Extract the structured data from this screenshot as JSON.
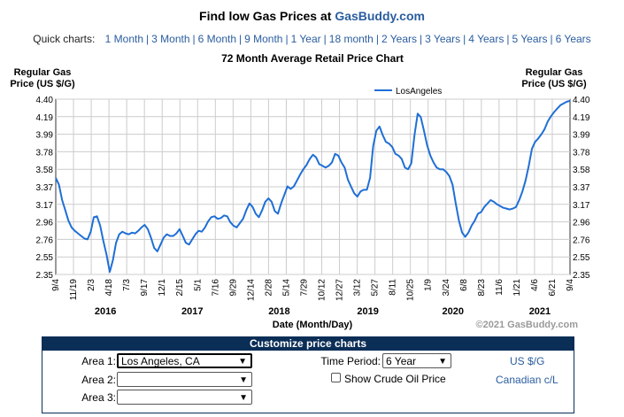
{
  "header": {
    "title_prefix": "Find low Gas Prices at ",
    "title_brand": "GasBuddy.com"
  },
  "quick_charts": {
    "label": "Quick charts:",
    "items": [
      "1 Month",
      "3 Month",
      "6 Month",
      "9 Month",
      "1 Year",
      "18 month",
      "2 Years",
      "3 Years",
      "4 Years",
      "5 Years",
      "6 Years"
    ]
  },
  "chart_data": {
    "type": "line",
    "title": "72 Month Average Retail Price Chart",
    "ylabel_left": [
      "Regular Gas",
      "Price (US $/G)"
    ],
    "ylabel_right": [
      "Regular Gas",
      "Price (US $/G)"
    ],
    "xlabel": "Date (Month/Day)",
    "copyright": "©2021 GasBuddy.com",
    "ylim": [
      2.35,
      4.4
    ],
    "yticks": [
      "4.40",
      "4.19",
      "3.99",
      "3.78",
      "3.58",
      "3.37",
      "3.17",
      "2.96",
      "2.76",
      "2.55",
      "2.35"
    ],
    "xticks": [
      "9/4",
      "11/19",
      "2/3",
      "4/18",
      "7/3",
      "9/17",
      "12/1",
      "2/15",
      "5/1",
      "7/16",
      "9/29",
      "12/14",
      "2/28",
      "5/14",
      "7/29",
      "10/12",
      "12/27",
      "3/12",
      "5/27",
      "8/11",
      "10/25",
      "1/9",
      "3/24",
      "6/8",
      "8/23",
      "11/6",
      "1/21",
      "4/6",
      "6/21",
      "9/4"
    ],
    "year_labels": [
      "2016",
      "2017",
      "2018",
      "2019",
      "2020",
      "2021"
    ],
    "grid": true,
    "legend_position": "top-right",
    "series": [
      {
        "name": "LosAngeles",
        "color": "#1f6fd6",
        "points": [
          [
            0,
            3.48
          ],
          [
            1,
            3.4
          ],
          [
            2,
            3.22
          ],
          [
            3,
            3.1
          ],
          [
            4,
            2.98
          ],
          [
            5,
            2.9
          ],
          [
            6,
            2.86
          ],
          [
            7,
            2.83
          ],
          [
            8,
            2.8
          ],
          [
            9,
            2.77
          ],
          [
            10,
            2.76
          ],
          [
            11,
            2.85
          ],
          [
            12,
            3.02
          ],
          [
            13,
            3.03
          ],
          [
            14,
            2.92
          ],
          [
            15,
            2.74
          ],
          [
            16,
            2.58
          ],
          [
            17,
            2.38
          ],
          [
            18,
            2.52
          ],
          [
            19,
            2.72
          ],
          [
            20,
            2.82
          ],
          [
            21,
            2.85
          ],
          [
            22,
            2.83
          ],
          [
            23,
            2.82
          ],
          [
            24,
            2.84
          ],
          [
            25,
            2.83
          ],
          [
            26,
            2.86
          ],
          [
            27,
            2.9
          ],
          [
            28,
            2.93
          ],
          [
            29,
            2.88
          ],
          [
            30,
            2.78
          ],
          [
            31,
            2.66
          ],
          [
            32,
            2.62
          ],
          [
            33,
            2.7
          ],
          [
            34,
            2.78
          ],
          [
            35,
            2.82
          ],
          [
            36,
            2.8
          ],
          [
            37,
            2.8
          ],
          [
            38,
            2.83
          ],
          [
            39,
            2.88
          ],
          [
            40,
            2.8
          ],
          [
            41,
            2.72
          ],
          [
            42,
            2.7
          ],
          [
            43,
            2.76
          ],
          [
            44,
            2.82
          ],
          [
            45,
            2.86
          ],
          [
            46,
            2.85
          ],
          [
            47,
            2.9
          ],
          [
            48,
            2.97
          ],
          [
            49,
            3.02
          ],
          [
            50,
            3.03
          ],
          [
            51,
            3.0
          ],
          [
            52,
            3.01
          ],
          [
            53,
            3.04
          ],
          [
            54,
            3.03
          ],
          [
            55,
            2.96
          ],
          [
            56,
            2.92
          ],
          [
            57,
            2.9
          ],
          [
            58,
            2.95
          ],
          [
            59,
            3.0
          ],
          [
            60,
            3.1
          ],
          [
            61,
            3.18
          ],
          [
            62,
            3.14
          ],
          [
            63,
            3.06
          ],
          [
            64,
            3.02
          ],
          [
            65,
            3.1
          ],
          [
            66,
            3.2
          ],
          [
            67,
            3.24
          ],
          [
            68,
            3.2
          ],
          [
            69,
            3.09
          ],
          [
            70,
            3.06
          ],
          [
            71,
            3.18
          ],
          [
            72,
            3.28
          ],
          [
            73,
            3.38
          ],
          [
            74,
            3.35
          ],
          [
            75,
            3.38
          ],
          [
            76,
            3.45
          ],
          [
            77,
            3.52
          ],
          [
            78,
            3.58
          ],
          [
            79,
            3.63
          ],
          [
            80,
            3.7
          ],
          [
            81,
            3.75
          ],
          [
            82,
            3.72
          ],
          [
            83,
            3.64
          ],
          [
            84,
            3.62
          ],
          [
            85,
            3.6
          ],
          [
            86,
            3.62
          ],
          [
            87,
            3.66
          ],
          [
            88,
            3.76
          ],
          [
            89,
            3.74
          ],
          [
            90,
            3.66
          ],
          [
            91,
            3.6
          ],
          [
            92,
            3.46
          ],
          [
            93,
            3.38
          ],
          [
            94,
            3.3
          ],
          [
            95,
            3.26
          ],
          [
            96,
            3.32
          ],
          [
            97,
            3.34
          ],
          [
            98,
            3.34
          ],
          [
            99,
            3.48
          ],
          [
            100,
            3.85
          ],
          [
            101,
            4.03
          ],
          [
            102,
            4.08
          ],
          [
            103,
            3.98
          ],
          [
            104,
            3.9
          ],
          [
            105,
            3.88
          ],
          [
            106,
            3.84
          ],
          [
            107,
            3.76
          ],
          [
            108,
            3.74
          ],
          [
            109,
            3.7
          ],
          [
            110,
            3.6
          ],
          [
            111,
            3.58
          ],
          [
            112,
            3.65
          ],
          [
            113,
            3.98
          ],
          [
            114,
            4.23
          ],
          [
            115,
            4.19
          ],
          [
            116,
            4.03
          ],
          [
            117,
            3.86
          ],
          [
            118,
            3.74
          ],
          [
            119,
            3.66
          ],
          [
            120,
            3.6
          ],
          [
            121,
            3.58
          ],
          [
            122,
            3.58
          ],
          [
            123,
            3.55
          ],
          [
            124,
            3.5
          ],
          [
            125,
            3.4
          ],
          [
            126,
            3.18
          ],
          [
            127,
            2.98
          ],
          [
            128,
            2.84
          ],
          [
            129,
            2.79
          ],
          [
            130,
            2.84
          ],
          [
            131,
            2.92
          ],
          [
            132,
            2.98
          ],
          [
            133,
            3.06
          ],
          [
            134,
            3.08
          ],
          [
            135,
            3.14
          ],
          [
            136,
            3.18
          ],
          [
            137,
            3.22
          ],
          [
            138,
            3.2
          ],
          [
            139,
            3.17
          ],
          [
            140,
            3.15
          ],
          [
            141,
            3.13
          ],
          [
            142,
            3.12
          ],
          [
            143,
            3.11
          ],
          [
            144,
            3.12
          ],
          [
            145,
            3.14
          ],
          [
            146,
            3.22
          ],
          [
            147,
            3.32
          ],
          [
            148,
            3.45
          ],
          [
            149,
            3.62
          ],
          [
            150,
            3.82
          ],
          [
            151,
            3.9
          ],
          [
            152,
            3.94
          ],
          [
            153,
            3.99
          ],
          [
            154,
            4.05
          ],
          [
            155,
            4.14
          ],
          [
            156,
            4.2
          ],
          [
            157,
            4.25
          ],
          [
            158,
            4.29
          ],
          [
            159,
            4.33
          ],
          [
            160,
            4.35
          ],
          [
            161,
            4.37
          ],
          [
            162,
            4.38
          ]
        ]
      }
    ]
  },
  "panel": {
    "title": "Customize price charts",
    "area1_label": "Area 1:",
    "area1_value": "Los Angeles, CA",
    "area2_label": "Area 2:",
    "area2_value": "",
    "area3_label": "Area 3:",
    "area3_value": "",
    "time_label": "Time Period:",
    "time_value": "6 Year",
    "crude_label": "Show Crude Oil Price",
    "currency_us": "US $/G",
    "currency_ca": "Canadian c/L"
  }
}
